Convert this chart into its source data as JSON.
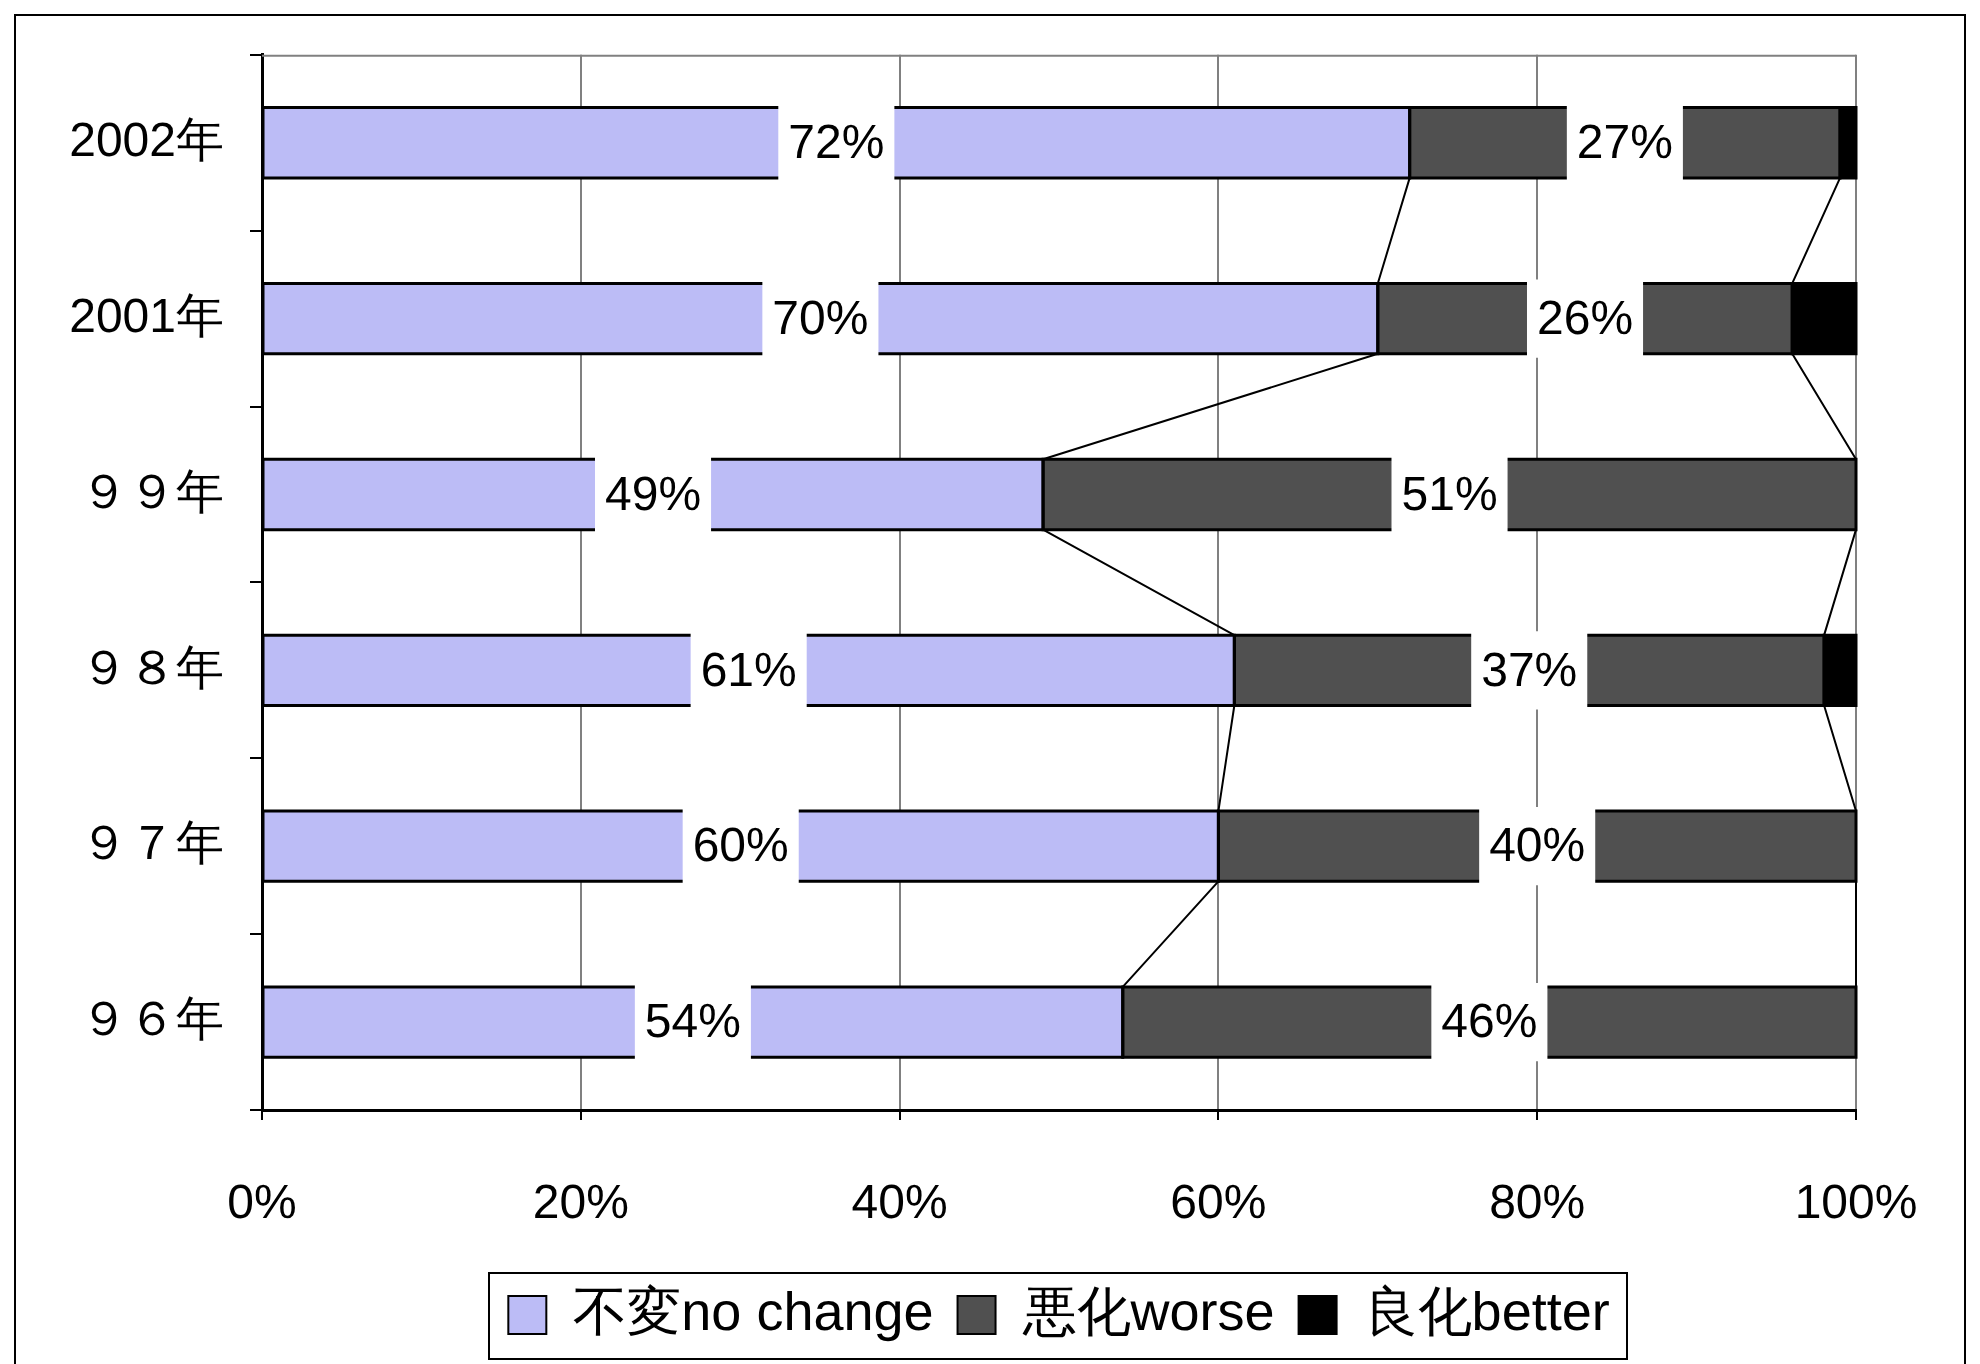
{
  "chart_data": {
    "type": "bar",
    "orientation": "horizontal",
    "stacked": true,
    "categories": [
      "2002年",
      "2001年",
      "９９年",
      "９８年",
      "９７年",
      "９６年"
    ],
    "series": [
      {
        "name": "不変no change",
        "color": "#bcbcf6",
        "values": [
          72,
          70,
          49,
          61,
          60,
          54
        ],
        "value_labels": [
          "72%",
          "70%",
          "49%",
          "61%",
          "60%",
          "54%"
        ]
      },
      {
        "name": "悪化worse",
        "color": "#505050",
        "values": [
          27,
          26,
          51,
          37,
          40,
          46
        ],
        "value_labels": [
          "27%",
          "26%",
          "51%",
          "37%",
          "40%",
          "46%"
        ]
      },
      {
        "name": "良化better",
        "color": "#000000",
        "values": [
          1,
          4,
          0,
          2,
          0,
          0
        ]
      }
    ],
    "xlim": [
      0,
      100
    ],
    "xticks": [
      {
        "value": 0,
        "label": "0%"
      },
      {
        "value": 20,
        "label": "20%"
      },
      {
        "value": 40,
        "label": "40%"
      },
      {
        "value": 60,
        "label": "60%"
      },
      {
        "value": 80,
        "label": "80%"
      },
      {
        "value": 100,
        "label": "100%"
      }
    ],
    "grid": "x",
    "legend": "bottom"
  }
}
